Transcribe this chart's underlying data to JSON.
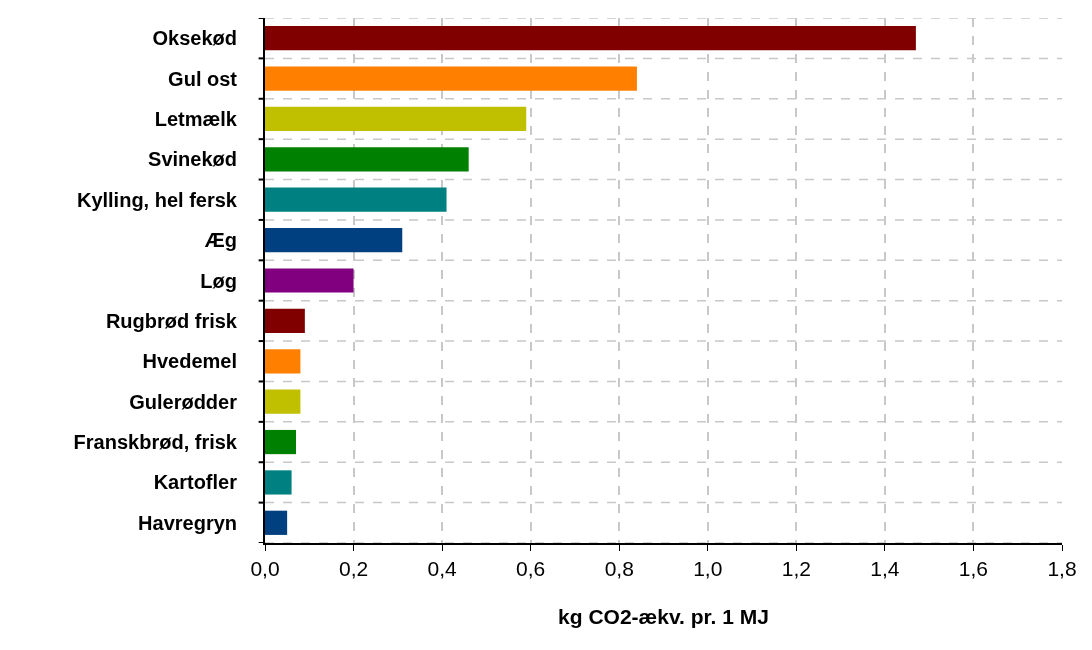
{
  "chart_data": {
    "type": "bar",
    "orientation": "horizontal",
    "xlabel": "kg CO2-ækv. pr. 1 MJ",
    "categories": [
      "Oksekød",
      "Gul ost",
      "Letmælk",
      "Svinekød",
      "Kylling, hel fersk",
      "Æg",
      "Løg",
      "Rugbrød frisk",
      "Hvedemel",
      "Gulerødder",
      "Franskbrød, frisk",
      "Kartofler",
      "Havregryn"
    ],
    "values": [
      1.47,
      0.84,
      0.59,
      0.46,
      0.41,
      0.31,
      0.2,
      0.09,
      0.08,
      0.08,
      0.07,
      0.06,
      0.05
    ],
    "colors": [
      "#800000",
      "#ff8000",
      "#c0c000",
      "#008000",
      "#008080",
      "#004080",
      "#800080",
      "#800000",
      "#ff8000",
      "#c0c000",
      "#008000",
      "#008080",
      "#004080"
    ],
    "xlim": [
      0,
      1.8
    ],
    "xticks": [
      {
        "value": 0,
        "label": "0,0"
      },
      {
        "value": 0.2,
        "label": "0,2"
      },
      {
        "value": 0.4,
        "label": "0,4"
      },
      {
        "value": 0.6,
        "label": "0,6"
      },
      {
        "value": 0.8,
        "label": "0,8"
      },
      {
        "value": 1.0,
        "label": "1,0"
      },
      {
        "value": 1.2,
        "label": "1,2"
      },
      {
        "value": 1.4,
        "label": "1,4"
      },
      {
        "value": 1.6,
        "label": "1,6"
      },
      {
        "value": 1.8,
        "label": "1,8"
      }
    ],
    "grid": true
  }
}
